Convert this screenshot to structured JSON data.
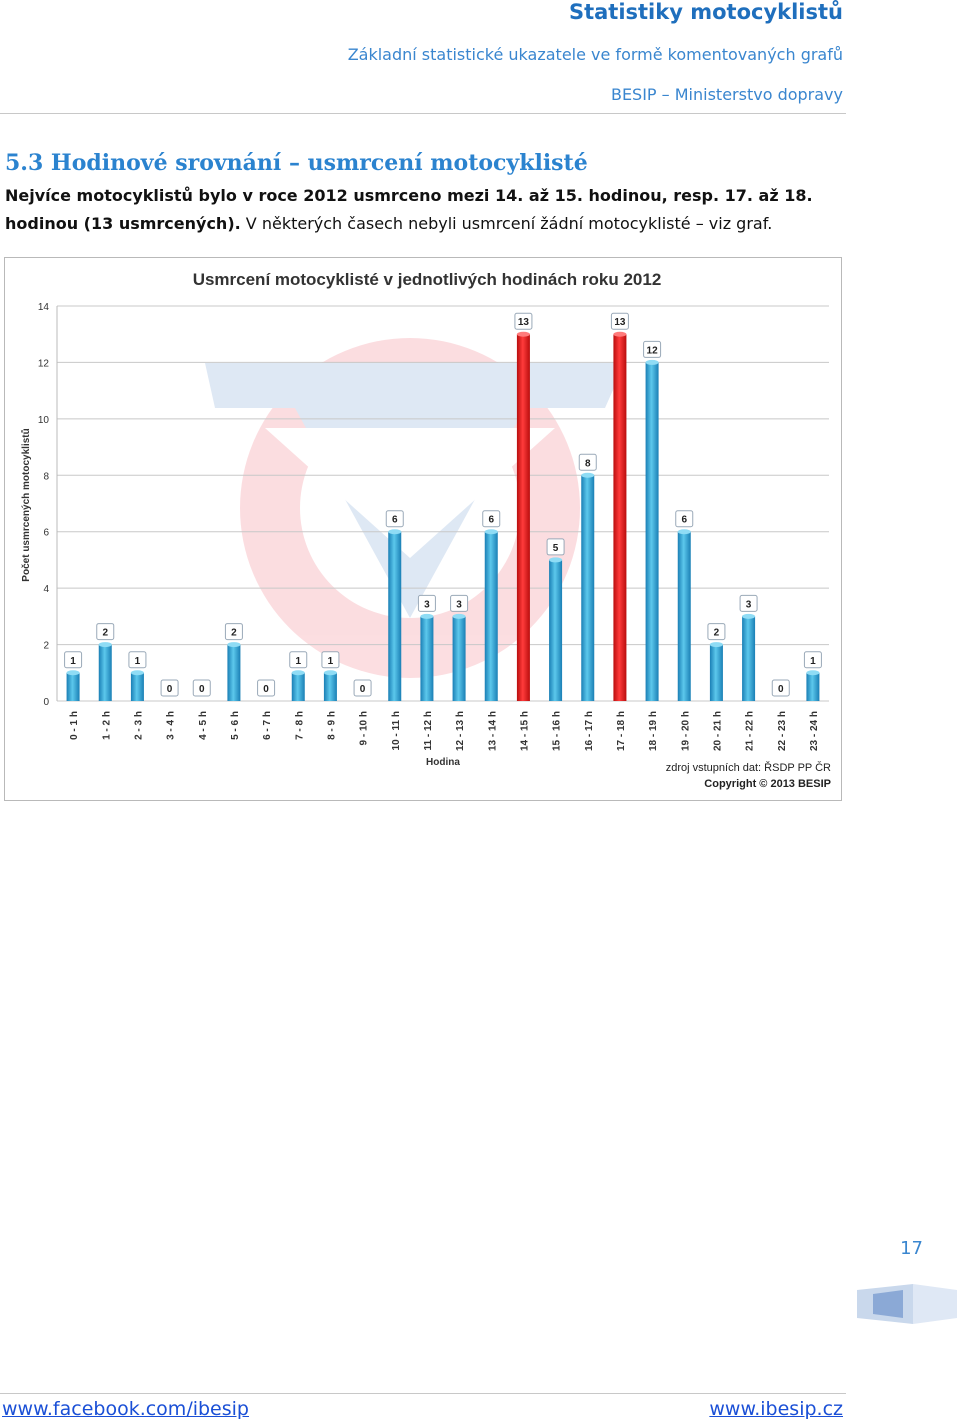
{
  "header": {
    "title": "Statistiky motocyklistů",
    "subtitle": "Základní statistické ukazatele ve formě komentovaných grafů",
    "org": "BESIP – Ministerstvo dopravy"
  },
  "section": {
    "title": "5.3 Hodinové srovnání – usmrcení motocyklisté",
    "para_bold": "Nejvíce motocyklistů bylo v roce 2012 usmrceno mezi 14. až 15. hodinou, resp. 17. až 18. hodinou (13 usmrcených).",
    "para_rest": " V některých časech nebyli usmrcení žádní motocyklisté – viz graf."
  },
  "colors": {
    "bar_normal": "#33a9d6",
    "bar_highlight": "#ee1a1a",
    "heading_blue": "#2b83cf",
    "link_blue": "#1a4fd6"
  },
  "chart_data": {
    "type": "bar",
    "title": "Usmrcení motocyklisté v jednotlivých hodinách roku 2012",
    "xlabel": "Hodina",
    "ylabel": "Počet usmrcených motocyklistů",
    "ylim": [
      0,
      14
    ],
    "yticks": [
      0,
      2,
      4,
      6,
      8,
      10,
      12,
      14
    ],
    "grid": true,
    "categories": [
      "0 - 1 h",
      "1 - 2 h",
      "2 - 3 h",
      "3 - 4 h",
      "4 - 5 h",
      "5 - 6 h",
      "6 - 7 h",
      "7 - 8 h",
      "8 - 9 h",
      "9 - 10 h",
      "10 - 11 h",
      "11 - 12 h",
      "12 - 13 h",
      "13 - 14 h",
      "14 - 15 h",
      "15 - 16 h",
      "16 - 17 h",
      "17 - 18 h",
      "18 - 19 h",
      "19 - 20 h",
      "20 - 21 h",
      "21 - 22 h",
      "22 - 23 h",
      "23 - 24 h"
    ],
    "values": [
      1,
      2,
      1,
      0,
      0,
      2,
      0,
      1,
      1,
      0,
      6,
      3,
      3,
      6,
      13,
      5,
      8,
      13,
      12,
      6,
      2,
      3,
      0,
      1
    ],
    "highlight": [
      "14 - 15 h",
      "17 - 18 h"
    ],
    "source_note": "zdroj vstupních dat: ŘSDP PP ČR",
    "copyright": "Copyright © 2013 BESIP"
  },
  "footer": {
    "page_number": "17",
    "left_link": "www.facebook.com/ibesip",
    "right_link": "www.ibesip.cz"
  }
}
